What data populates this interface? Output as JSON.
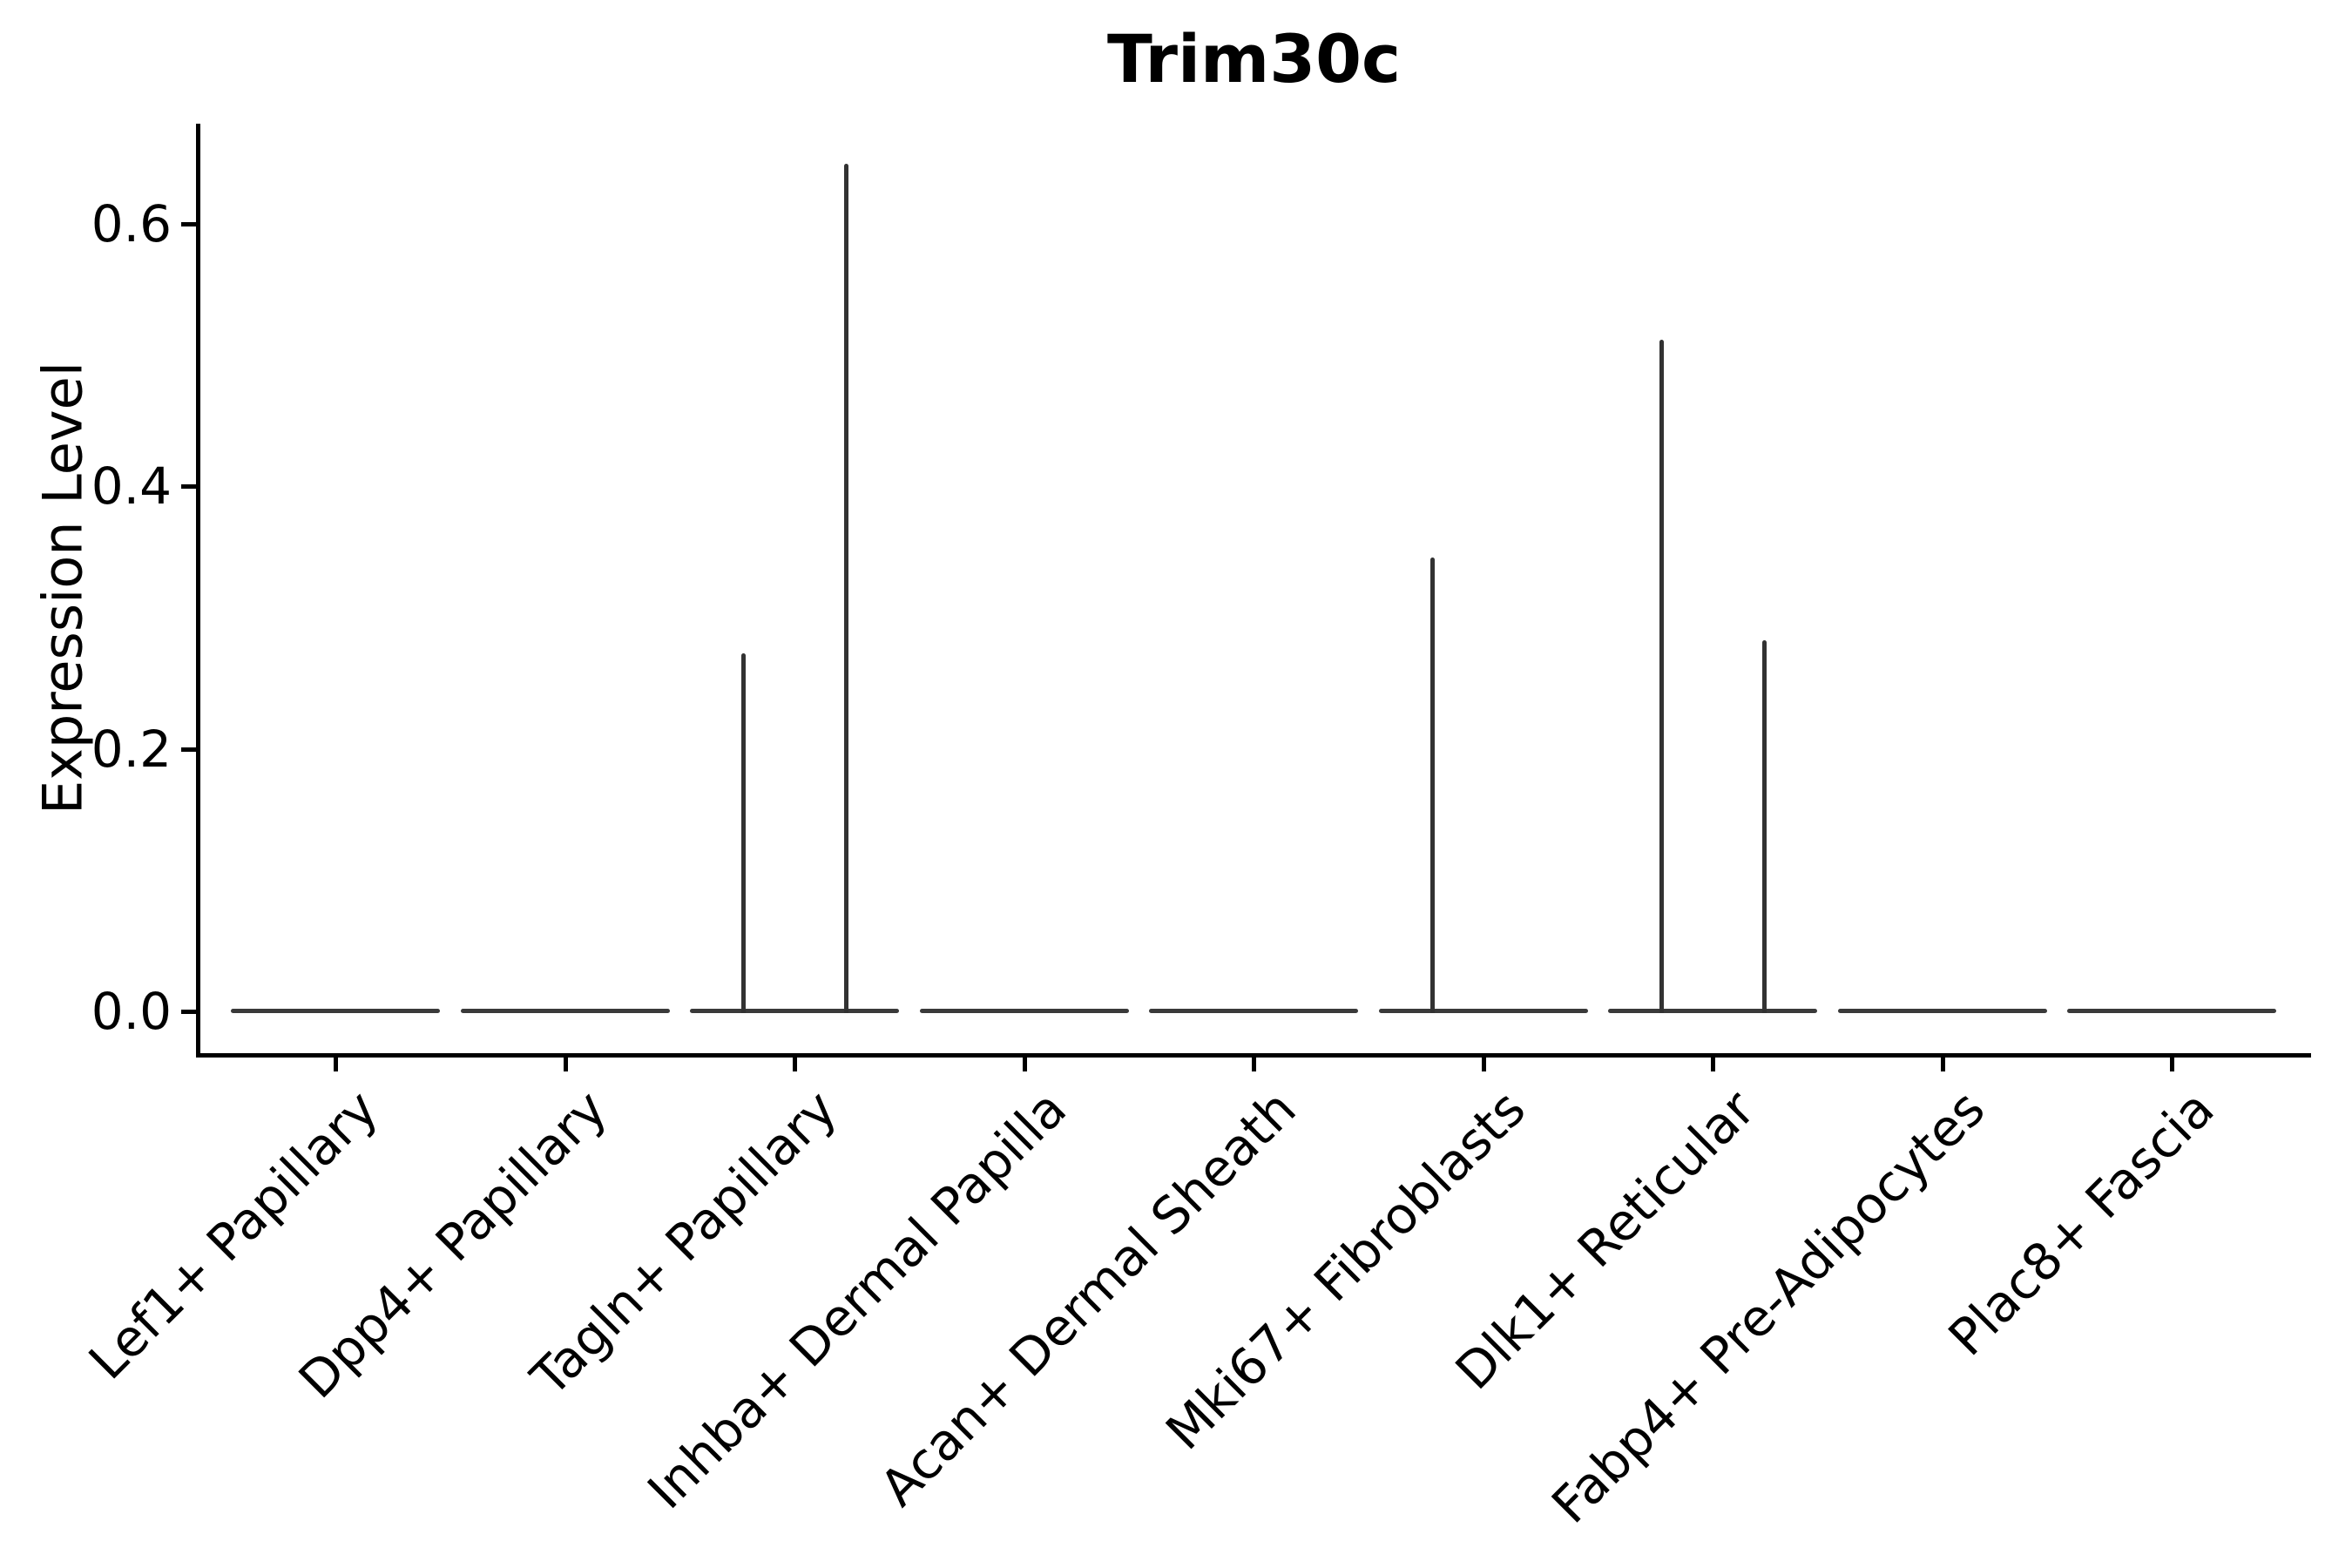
{
  "chart_data": {
    "type": "violin",
    "title": "Trim30c",
    "xlabel": "",
    "ylabel": "Expression Level",
    "categories": [
      "Lef1+ Papillary",
      "Dpp4+ Papillary",
      "Tagln+ Papillary",
      "Inhba+ Dermal Papilla",
      "Acan+ Dermal Sheath",
      "Mki67+ Fibroblasts",
      "Dlk1+ Reticular",
      "Fabp4+ Pre-Adipocytes",
      "Plac8+ Fascia"
    ],
    "yticks": [
      0.0,
      0.2,
      0.4,
      0.6
    ],
    "ylim": [
      -0.032,
      0.677
    ],
    "grid": false,
    "legend": null,
    "axis_color": "#000000",
    "violin_color": "#3a3a3a",
    "spike_color": "#323232",
    "violins": [
      {
        "category": "Lef1+ Papillary",
        "base_value": 0.0,
        "spikes": []
      },
      {
        "category": "Dpp4+ Papillary",
        "base_value": 0.0,
        "spikes": []
      },
      {
        "category": "Tagln+ Papillary",
        "base_value": 0.0,
        "spikes": [
          {
            "side": "left",
            "value": 0.273
          },
          {
            "side": "right",
            "value": 0.646
          }
        ]
      },
      {
        "category": "Inhba+ Dermal Papilla",
        "base_value": 0.0,
        "spikes": []
      },
      {
        "category": "Acan+ Dermal Sheath",
        "base_value": 0.0,
        "spikes": []
      },
      {
        "category": "Mki67+ Fibroblasts",
        "base_value": 0.0,
        "spikes": [
          {
            "side": "left",
            "value": 0.346
          }
        ]
      },
      {
        "category": "Dlk1+ Reticular",
        "base_value": 0.0,
        "spikes": [
          {
            "side": "left",
            "value": 0.512
          },
          {
            "side": "right",
            "value": 0.283
          }
        ]
      },
      {
        "category": "Fabp4+ Pre-Adipocytes",
        "base_value": 0.0,
        "spikes": []
      },
      {
        "category": "Plac8+ Fascia",
        "base_value": 0.0,
        "spikes": []
      }
    ]
  }
}
